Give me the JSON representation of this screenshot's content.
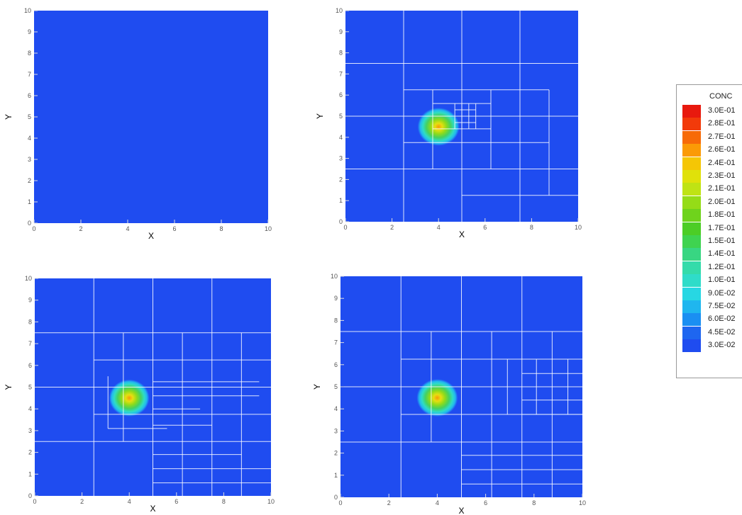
{
  "chart_data": [
    {
      "type": "heatmap",
      "xlabel": "X",
      "ylabel": "Y",
      "xlim": [
        0,
        10
      ],
      "ylim": [
        0,
        10
      ],
      "xticks": [
        0,
        2,
        4,
        6,
        8,
        10
      ],
      "yticks": [
        0,
        1,
        2,
        3,
        4,
        5,
        6,
        7,
        8,
        9,
        10
      ],
      "background_conc": 0.03,
      "blob": null,
      "grid_lines": []
    },
    {
      "type": "heatmap",
      "xlabel": "X",
      "ylabel": "Y",
      "xlim": [
        0,
        10
      ],
      "ylim": [
        0,
        10
      ],
      "xticks": [
        0,
        2,
        4,
        6,
        8,
        10
      ],
      "yticks": [
        0,
        1,
        2,
        3,
        4,
        5,
        6,
        7,
        8,
        9,
        10
      ],
      "background_conc": 0.03,
      "blob": {
        "cx": 4,
        "cy": 4.5,
        "radius": 0.9,
        "peak_conc": 0.27
      },
      "grid_lines": [
        [
          0,
          7.5,
          10,
          7.5
        ],
        [
          2.5,
          0,
          2.5,
          10
        ],
        [
          5,
          0,
          5,
          10
        ],
        [
          0,
          5,
          10,
          5
        ],
        [
          0,
          2.5,
          10,
          2.5
        ],
        [
          7.5,
          0,
          7.5,
          10
        ],
        [
          2.5,
          6.25,
          8.75,
          6.25
        ],
        [
          2.5,
          3.75,
          8.75,
          3.75
        ],
        [
          3.75,
          2.5,
          3.75,
          6.25
        ],
        [
          6.25,
          2.5,
          6.25,
          6.25
        ],
        [
          8.75,
          1.25,
          8.75,
          6.25
        ],
        [
          5,
          1.25,
          10,
          1.25
        ],
        [
          3.75,
          5.6,
          6.25,
          5.6
        ],
        [
          3.75,
          4.4,
          6.25,
          4.4
        ],
        [
          4.7,
          4.4,
          4.7,
          5.6
        ],
        [
          5.3,
          4.4,
          5.3,
          5.6
        ],
        [
          4.7,
          5.3,
          5.6,
          5.3
        ],
        [
          4.7,
          4.7,
          5.6,
          4.7
        ],
        [
          5.0,
          4.4,
          5.0,
          5.6
        ],
        [
          5.6,
          4.4,
          5.6,
          5.6
        ]
      ]
    },
    {
      "type": "heatmap",
      "xlabel": "X",
      "ylabel": "Y",
      "xlim": [
        0,
        10
      ],
      "ylim": [
        0,
        10
      ],
      "xticks": [
        0,
        2,
        4,
        6,
        8,
        10
      ],
      "yticks": [
        0,
        1,
        2,
        3,
        4,
        5,
        6,
        7,
        8,
        9,
        10
      ],
      "background_conc": 0.03,
      "blob": {
        "cx": 4,
        "cy": 4.5,
        "radius": 0.85,
        "peak_conc": 0.27
      },
      "grid_lines": [
        [
          0,
          7.5,
          10,
          7.5
        ],
        [
          2.5,
          0,
          2.5,
          10
        ],
        [
          5,
          0,
          5,
          10
        ],
        [
          0,
          5,
          10,
          5
        ],
        [
          0,
          2.5,
          10,
          2.5
        ],
        [
          7.5,
          0,
          7.5,
          10
        ],
        [
          3.75,
          2.5,
          3.75,
          7.5
        ],
        [
          6.25,
          0,
          6.25,
          7.5
        ],
        [
          2.5,
          6.25,
          10,
          6.25
        ],
        [
          2.5,
          3.75,
          10,
          3.75
        ],
        [
          5,
          1.9,
          8.75,
          1.9
        ],
        [
          5,
          1.25,
          10,
          1.25
        ],
        [
          5,
          0.6,
          10,
          0.6
        ],
        [
          8.75,
          0,
          8.75,
          7.5
        ],
        [
          5,
          5.25,
          9.5,
          5.25
        ],
        [
          5,
          4.6,
          9.5,
          4.6
        ],
        [
          5,
          4.0,
          7,
          4.0
        ],
        [
          5,
          3.25,
          7.5,
          3.25
        ],
        [
          3.1,
          3.1,
          3.1,
          5.5
        ],
        [
          3.1,
          3.1,
          5.6,
          3.1
        ]
      ]
    },
    {
      "type": "heatmap",
      "xlabel": "X",
      "ylabel": "Y",
      "xlim": [
        0,
        10
      ],
      "ylim": [
        0,
        10
      ],
      "xticks": [
        0,
        2,
        4,
        6,
        8,
        10
      ],
      "yticks": [
        0,
        1,
        2,
        3,
        4,
        5,
        6,
        7,
        8,
        9,
        10
      ],
      "background_conc": 0.03,
      "blob": {
        "cx": 4,
        "cy": 4.5,
        "radius": 0.85,
        "peak_conc": 0.27
      },
      "grid_lines": [
        [
          0,
          7.5,
          10,
          7.5
        ],
        [
          2.5,
          0,
          2.5,
          10
        ],
        [
          5,
          0,
          5,
          10
        ],
        [
          0,
          5,
          10,
          5
        ],
        [
          0,
          2.5,
          10,
          2.5
        ],
        [
          7.5,
          0,
          7.5,
          10
        ],
        [
          2.5,
          6.25,
          10,
          6.25
        ],
        [
          2.5,
          3.75,
          10,
          3.75
        ],
        [
          3.75,
          2.5,
          3.75,
          7.5
        ],
        [
          6.25,
          0,
          6.25,
          7.5
        ],
        [
          8.75,
          0,
          8.75,
          7.5
        ],
        [
          5,
          1.25,
          10,
          1.25
        ],
        [
          5,
          1.9,
          10,
          1.9
        ],
        [
          5,
          0.6,
          10,
          0.6
        ],
        [
          7.5,
          5.6,
          10,
          5.6
        ],
        [
          7.5,
          4.4,
          10,
          4.4
        ],
        [
          7.5,
          3.75,
          10,
          3.75
        ],
        [
          6.9,
          3.75,
          6.9,
          6.25
        ],
        [
          8.1,
          3.75,
          8.1,
          6.25
        ],
        [
          9.4,
          3.75,
          9.4,
          6.25
        ]
      ]
    }
  ],
  "legend": {
    "title": "CONC",
    "levels": [
      {
        "label": "3.0E-01",
        "color": "#e8190e"
      },
      {
        "label": "2.8E-01",
        "color": "#f23a0a"
      },
      {
        "label": "2.7E-01",
        "color": "#f76a08"
      },
      {
        "label": "2.6E-01",
        "color": "#fb9a06"
      },
      {
        "label": "2.4E-01",
        "color": "#f5c605"
      },
      {
        "label": "2.3E-01",
        "color": "#e0e10a"
      },
      {
        "label": "2.1E-01",
        "color": "#bfe314"
      },
      {
        "label": "2.0E-01",
        "color": "#95dc17"
      },
      {
        "label": "1.8E-01",
        "color": "#6fd31c"
      },
      {
        "label": "1.7E-01",
        "color": "#4ccd26"
      },
      {
        "label": "1.5E-01",
        "color": "#3fd350"
      },
      {
        "label": "1.4E-01",
        "color": "#38d682"
      },
      {
        "label": "1.2E-01",
        "color": "#34dbaa"
      },
      {
        "label": "1.0E-01",
        "color": "#2fdcc9"
      },
      {
        "label": "9.0E-02",
        "color": "#27d7e3"
      },
      {
        "label": "7.5E-02",
        "color": "#1fb6ef"
      },
      {
        "label": "6.0E-02",
        "color": "#1a8ff2"
      },
      {
        "label": "4.5E-02",
        "color": "#1e66f0"
      },
      {
        "label": "3.0E-02",
        "color": "#1f4cf0"
      }
    ]
  }
}
